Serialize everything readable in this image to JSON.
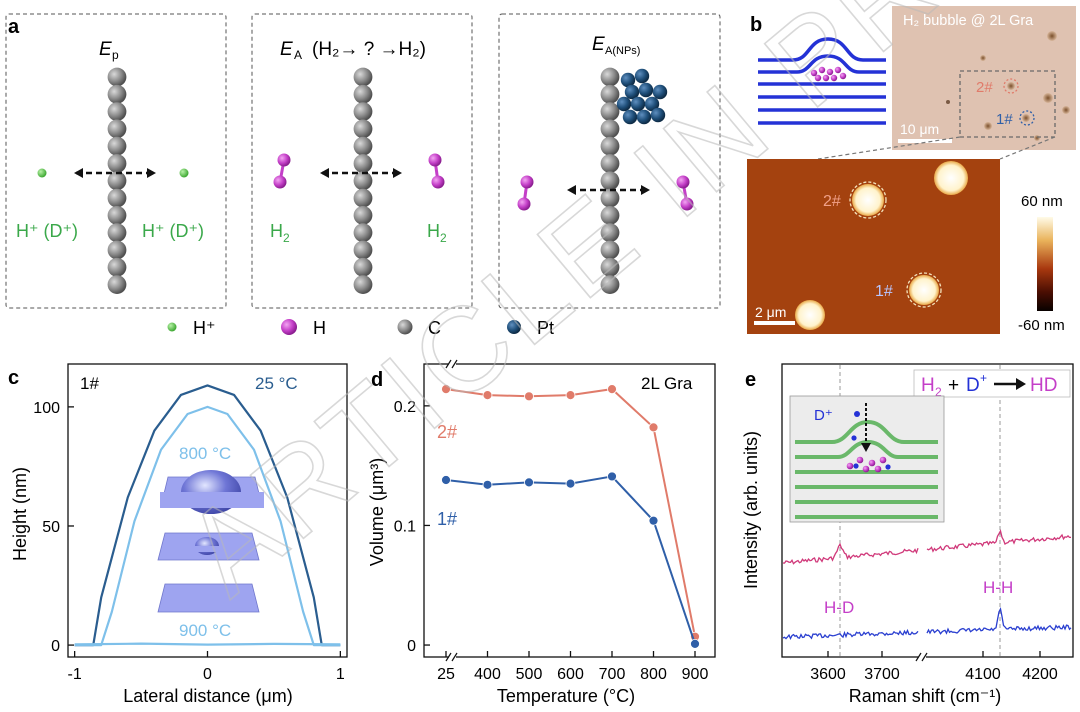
{
  "watermark": "ARTICLE IN PRESS",
  "panel_a": {
    "label": "a",
    "box1_title": "E",
    "box1_sub": "p",
    "box2_title": "E",
    "box2_sub": "A",
    "box2_rest": "(H₂→ ? →H₂)",
    "box3_title": "E",
    "box3_sub": "A(NPs)",
    "left_ion": "H⁺ (D⁺)",
    "right_ion": "H⁺ (D⁺)",
    "h2_left": "H",
    "h2_right": "H",
    "h2_sub": "2",
    "legend": [
      {
        "label": "H⁺",
        "color": "#55c24a"
      },
      {
        "label": "H",
        "color": "#c43fc8"
      },
      {
        "label": "C",
        "color": "#7c7c7c"
      },
      {
        "label": "Pt",
        "color": "#1f4f7a"
      }
    ]
  },
  "panel_b": {
    "label": "b",
    "optical_title": "H₂ bubble @ 2L Gra",
    "optical_scale": "10 μm",
    "optical_marker_2": "2#",
    "optical_marker_1": "1#",
    "afm_scale": "2 μm",
    "afm_marker_2": "2#",
    "afm_marker_1": "1#",
    "colorbar_max": "60 nm",
    "colorbar_min": "-60 nm"
  },
  "panel_c": {
    "label": "c",
    "tag": "1#",
    "ylabel": "Height (nm)",
    "xlabel": "Lateral distance (μm)",
    "yticks": [
      "0",
      "50",
      "100"
    ],
    "xticks": [
      "-1",
      "0",
      "1"
    ],
    "chart_data": {
      "type": "line",
      "title": "1#",
      "xlabel": "Lateral distance (μm)",
      "ylabel": "Height (nm)",
      "xlim": [
        -1.05,
        1.05
      ],
      "ylim": [
        -5,
        118
      ],
      "series": [
        {
          "name": "25 °C",
          "color": "#2a5d8f",
          "x": [
            -1.0,
            -0.86,
            -0.8,
            -0.6,
            -0.4,
            -0.2,
            0.0,
            0.2,
            0.4,
            0.6,
            0.8,
            0.86,
            1.0
          ],
          "y": [
            0,
            0,
            20,
            62,
            90,
            105,
            109,
            105,
            90,
            62,
            20,
            0,
            0
          ]
        },
        {
          "name": "800 °C",
          "color": "#7ec0ea",
          "x": [
            -1.0,
            -0.8,
            -0.72,
            -0.55,
            -0.35,
            -0.15,
            0.0,
            0.15,
            0.35,
            0.55,
            0.72,
            0.8,
            1.0
          ],
          "y": [
            0,
            0,
            14,
            52,
            82,
            97,
            100,
            97,
            82,
            52,
            14,
            0,
            0
          ]
        },
        {
          "name": "900 °C",
          "color": "#7ec0ea",
          "x": [
            -1.0,
            -0.5,
            0.0,
            0.5,
            1.0
          ],
          "y": [
            0.3,
            0.6,
            0.2,
            0.5,
            0.3
          ]
        }
      ]
    }
  },
  "panel_d": {
    "label": "d",
    "tag": "2L Gra",
    "ylabel": "Volume (μm³)",
    "xlabel": "Temperature (°C)",
    "series_labels": [
      "2#",
      "1#"
    ],
    "chart_data": {
      "type": "line",
      "title": "2L Gra",
      "xlabel": "Temperature (°C)",
      "ylabel": "Volume (μm³)",
      "categories": [
        "25",
        "400",
        "500",
        "600",
        "700",
        "800",
        "900"
      ],
      "ylim": [
        -0.01,
        0.235
      ],
      "yticks": [
        "0",
        "0.1",
        "0.2"
      ],
      "series": [
        {
          "name": "2#",
          "color": "#e07b6a",
          "values": [
            0.214,
            0.209,
            0.208,
            0.209,
            0.214,
            0.182,
            0.007
          ]
        },
        {
          "name": "1#",
          "color": "#2f5fa8",
          "values": [
            0.138,
            0.134,
            0.136,
            0.135,
            0.141,
            0.104,
            0.001
          ]
        }
      ]
    }
  },
  "panel_e": {
    "label": "e",
    "reaction_h2": "H",
    "reaction_sub": "2",
    "reaction_plus": "+",
    "reaction_d": "D",
    "reaction_dplus": "+",
    "reaction_product": "HD",
    "inset_d": "D⁺",
    "peak_hd": "H-D",
    "peak_hh": "H-H",
    "ylabel": "Intensity (arb. units)",
    "xlabel": "Raman shift (cm⁻¹)",
    "chart_data": {
      "type": "line",
      "title": "H₂ + D⁺ → HD",
      "xlabel": "Raman shift (cm⁻¹)",
      "ylabel": "Intensity (arb. units)",
      "xticks": [
        "3600",
        "3700",
        "4100",
        "4200"
      ],
      "break": [
        3780,
        4020
      ],
      "peaks": [
        {
          "name": "H-D",
          "x": 3632
        },
        {
          "name": "H-H",
          "x": 4156
        }
      ],
      "series": [
        {
          "name": "H₂ + D⁺ (pink)",
          "color": "#d0397a"
        },
        {
          "name": "H₂ (blue)",
          "color": "#2a3fd0"
        }
      ]
    }
  }
}
